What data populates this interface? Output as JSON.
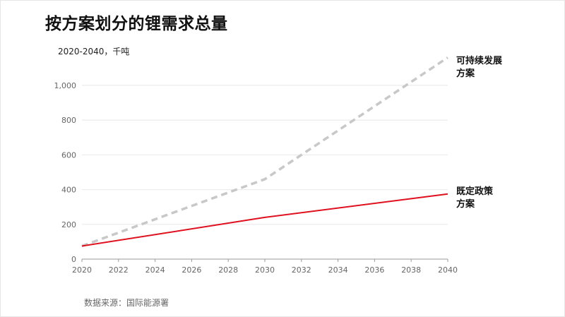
{
  "page": {
    "title": "按方案划分的锂需求总量",
    "subtitle": "2020-2040，千吨",
    "source": "数据来源：国际能源署"
  },
  "chart_data": {
    "type": "line",
    "title": "按方案划分的锂需求总量",
    "subtitle": "2020-2040，千吨",
    "xlabel": "",
    "ylabel": "",
    "xlim": [
      2020,
      2040
    ],
    "ylim": [
      0,
      1150
    ],
    "x_ticks": [
      2020,
      2022,
      2024,
      2026,
      2028,
      2030,
      2032,
      2034,
      2036,
      2038,
      2040
    ],
    "y_ticks": [
      0,
      200,
      400,
      600,
      800,
      1000
    ],
    "y_tick_labels": [
      "0",
      "200",
      "400",
      "600",
      "800",
      "1,000"
    ],
    "grid": true,
    "series": [
      {
        "name": "可持续发展方案",
        "label_lines": [
          "可持续发展",
          "方案"
        ],
        "style": "dashed",
        "color": "#c8c8c8",
        "x": [
          2020,
          2030,
          2040
        ],
        "y": [
          75,
          460,
          1160
        ]
      },
      {
        "name": "既定政策方案",
        "label_lines": [
          "既定政策",
          "方案"
        ],
        "style": "solid",
        "color": "#e0101e",
        "x": [
          2020,
          2030,
          2040
        ],
        "y": [
          75,
          240,
          375
        ]
      }
    ],
    "source": "数据来源：国际能源署"
  }
}
